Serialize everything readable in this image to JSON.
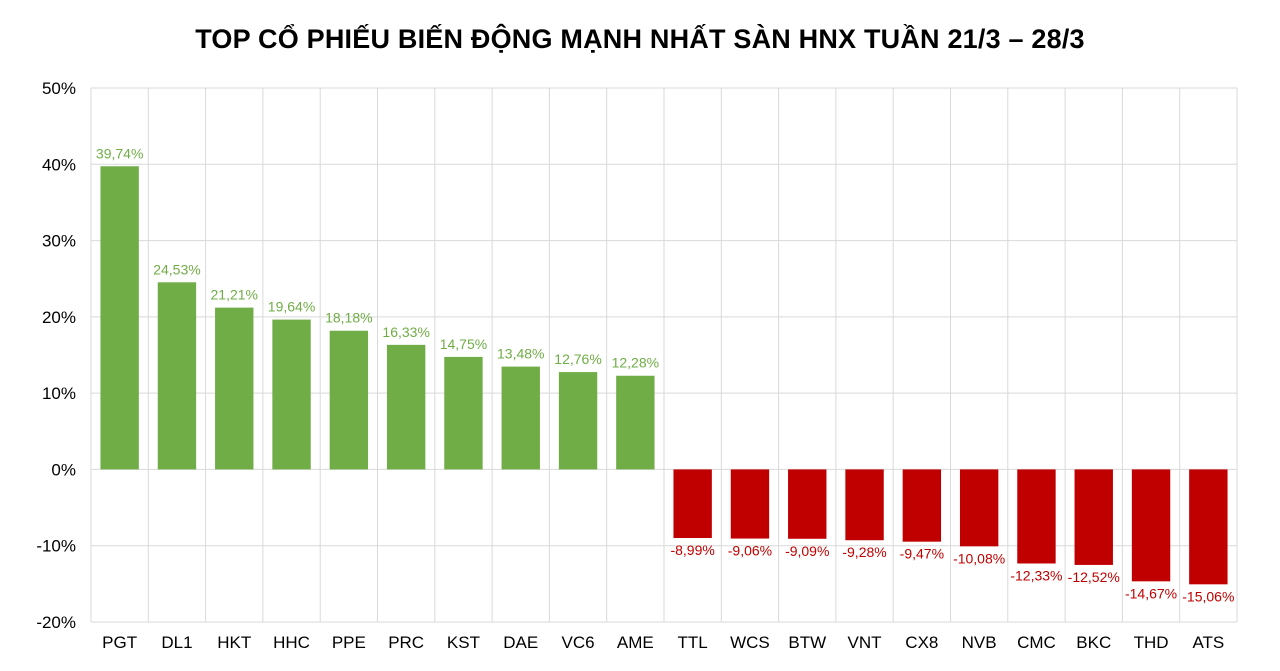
{
  "chart_data": {
    "type": "bar",
    "title": "TOP CỔ PHIẾU BIẾN ĐỘNG MẠNH NHẤT SÀN HNX TUẦN 21/3 – 28/3",
    "xlabel": "",
    "ylabel": "",
    "ylim": [
      -20,
      50
    ],
    "yticks": [
      "50%",
      "40%",
      "30%",
      "20%",
      "10%",
      "0%",
      "-10%",
      "-20%"
    ],
    "ytick_values": [
      50,
      40,
      30,
      20,
      10,
      0,
      -10,
      -20
    ],
    "grid": true,
    "categories": [
      "PGT",
      "DL1",
      "HKT",
      "HHC",
      "PPE",
      "PRC",
      "KST",
      "DAE",
      "VC6",
      "AME",
      "TTL",
      "WCS",
      "BTW",
      "VNT",
      "CX8",
      "NVB",
      "CMC",
      "BKC",
      "THD",
      "ATS"
    ],
    "values": [
      39.74,
      24.53,
      21.21,
      19.64,
      18.18,
      16.33,
      14.75,
      13.48,
      12.76,
      12.28,
      -8.99,
      -9.06,
      -9.09,
      -9.28,
      -9.47,
      -10.08,
      -12.33,
      -12.52,
      -14.67,
      -15.06
    ],
    "data_labels": [
      "39,74%",
      "24,53%",
      "21,21%",
      "19,64%",
      "18,18%",
      "16,33%",
      "14,75%",
      "13,48%",
      "12,76%",
      "12,28%",
      "-8,99%",
      "-9,06%",
      "-9,09%",
      "-9,28%",
      "-9,47%",
      "-10,08%",
      "-12,33%",
      "-12,52%",
      "-14,67%",
      "-15,06%"
    ],
    "colors": {
      "positive": "#70ad47",
      "negative": "#c00000",
      "grid": "#d9d9d9"
    }
  }
}
